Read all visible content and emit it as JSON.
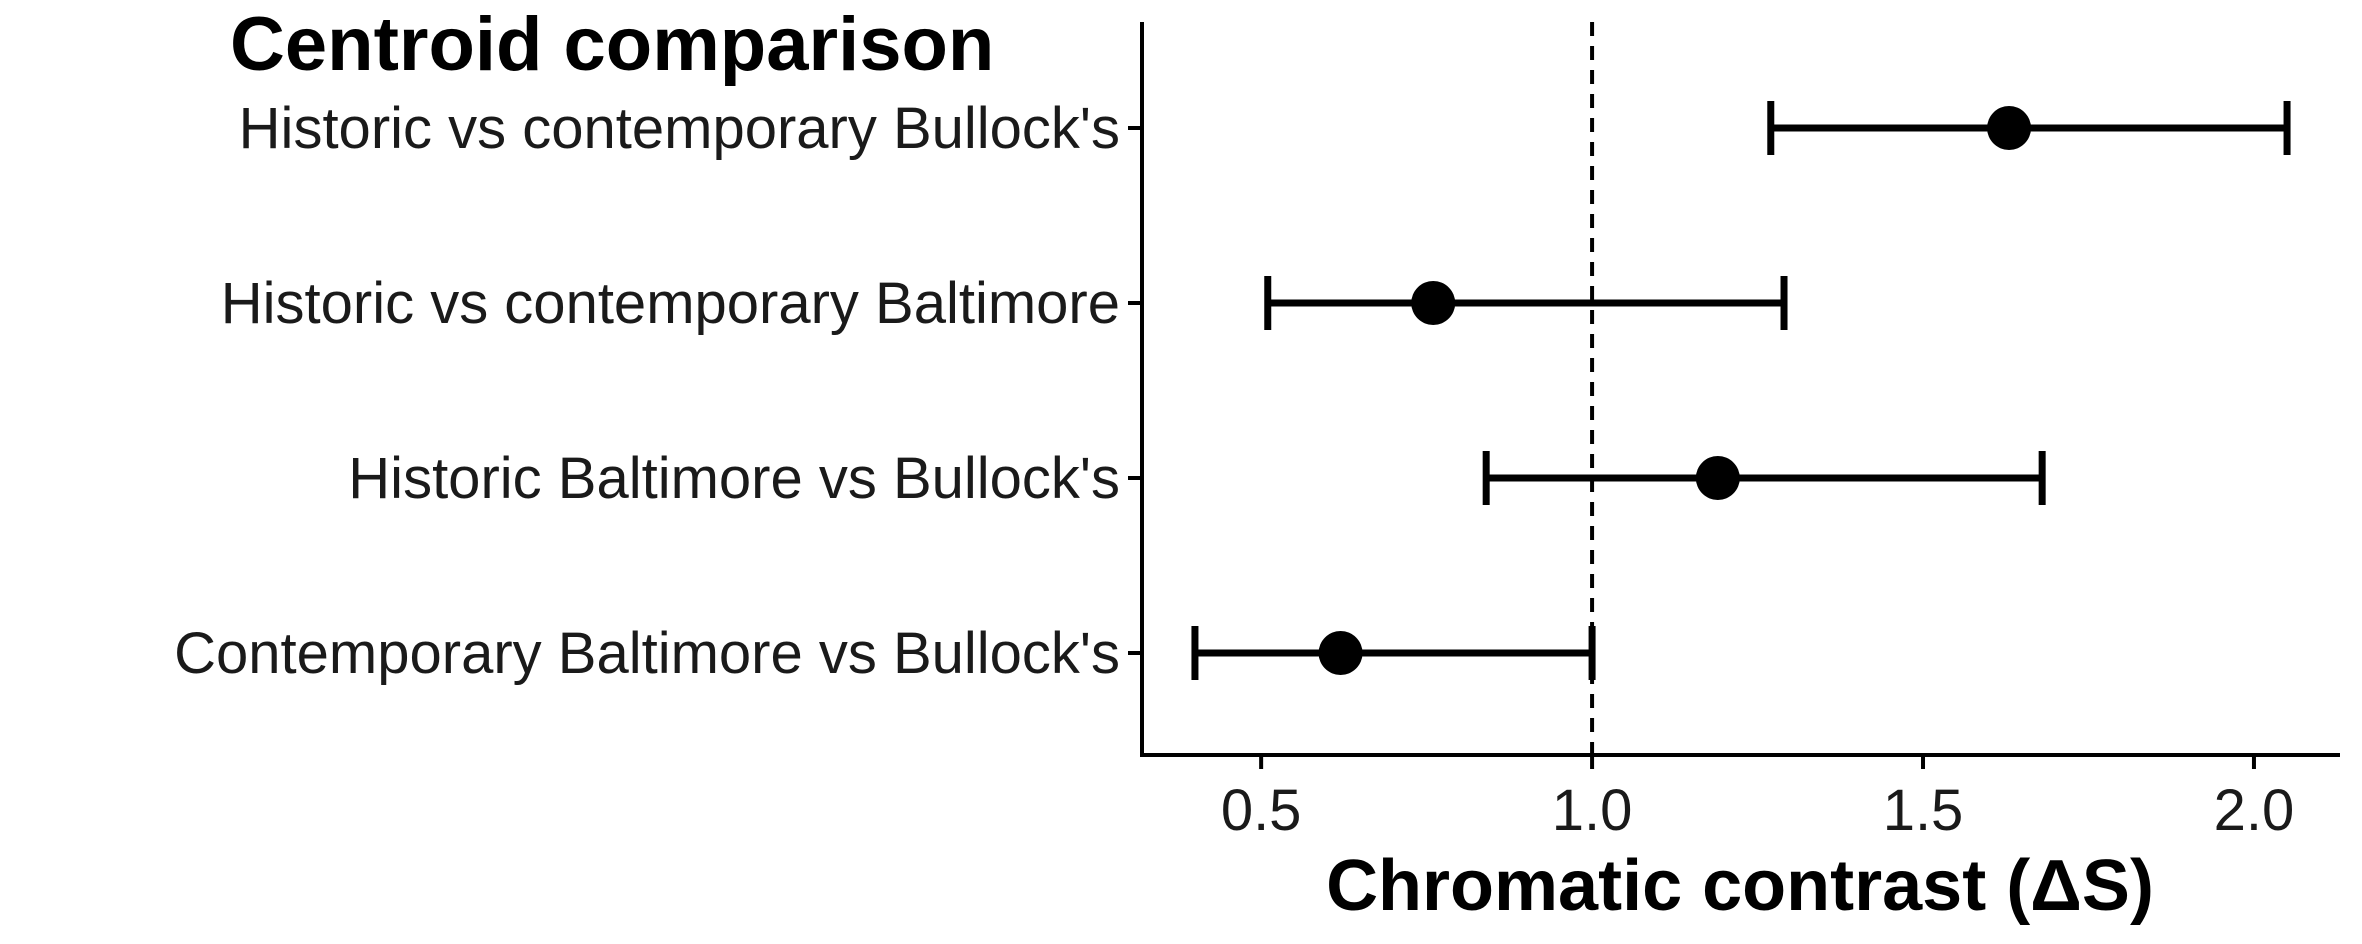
{
  "chart_data": {
    "type": "scatter",
    "title": "Centroid comparison",
    "xlabel": "Chromatic contrast (ΔS)",
    "ylabel": "",
    "xlim": [
      0.32,
      2.13
    ],
    "xticks": [
      0.5,
      1.0,
      1.5,
      2.0
    ],
    "xtick_labels": [
      "0.5",
      "1.0",
      "1.5",
      "2.0"
    ],
    "reference_line": 1.0,
    "grid": false,
    "colors": {
      "marker": "#000000",
      "axis": "#000000",
      "text": "#1a1a1a"
    },
    "points": [
      {
        "label": "Historic vs contemporary Bullock's",
        "estimate": 1.63,
        "lower": 1.27,
        "upper": 2.05
      },
      {
        "label": "Historic vs contemporary Baltimore",
        "estimate": 0.76,
        "lower": 0.51,
        "upper": 1.29
      },
      {
        "label": "Historic Baltimore vs Bullock's",
        "estimate": 1.19,
        "lower": 0.84,
        "upper": 1.68
      },
      {
        "label": "Contemporary Baltimore vs Bullock's",
        "estimate": 0.62,
        "lower": 0.4,
        "upper": 1.0
      }
    ]
  }
}
